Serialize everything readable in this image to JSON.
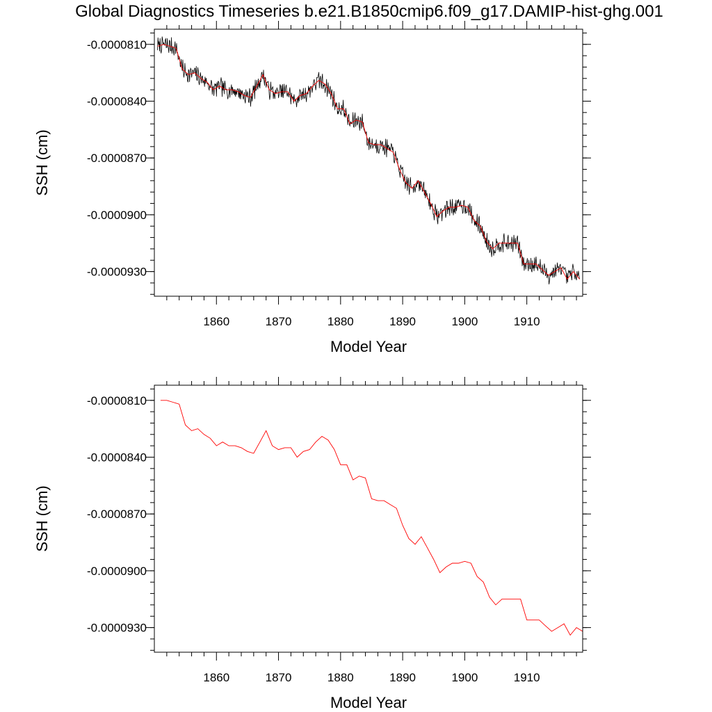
{
  "figure": {
    "title": "Global Diagnostics Timeseries b.e21.B1850cmip6.f09_g17.DAMIP-hist-ghg.001"
  },
  "colors": {
    "monthly": "#000000",
    "annual": "#ff0000",
    "frame": "#000000"
  },
  "chart_data": [
    {
      "type": "line",
      "title": "Global Diagnostics Timeseries b.e21.B1850cmip6.f09_g17.DAMIP-hist-ghg.001",
      "xlabel": "Model Year",
      "ylabel": "SSH (cm)",
      "xlim": [
        1850,
        1919
      ],
      "ylim": [
        -9.43e-05,
        -8.02e-05
      ],
      "xticks": [
        1860,
        1870,
        1880,
        1890,
        1900,
        1910
      ],
      "xtick_labels": [
        "1860",
        "1870",
        "1880",
        "1890",
        "1900",
        "1910"
      ],
      "yticks": [
        -8.1e-05,
        -8.4e-05,
        -8.7e-05,
        -9e-05,
        -9.3e-05
      ],
      "ytick_labels": [
        "-0.0000810",
        "-0.0000840",
        "-0.0000870",
        "-0.0000900",
        "-0.0000930"
      ],
      "grid": false,
      "series": [
        {
          "kind": "monthly",
          "color": "#000000",
          "x": [
            1850.5,
            1851.5,
            1852.5,
            1853.5,
            1854.5,
            1855.5,
            1856.5,
            1857.5,
            1858.5,
            1859.5,
            1860.5,
            1861.5,
            1862.5,
            1863.5,
            1864.5,
            1865.5,
            1866.5,
            1867.5,
            1868.5,
            1869.5,
            1870.5,
            1871.5,
            1872.5,
            1873.5,
            1874.5,
            1875.5,
            1876.5,
            1877.5,
            1878.5,
            1879.5,
            1880.5,
            1881.5,
            1882.5,
            1883.5,
            1884.5,
            1885.5,
            1886.5,
            1887.5,
            1888.5,
            1889.5,
            1890.5,
            1891.5,
            1892.5,
            1893.5,
            1894.5,
            1895.5,
            1896.5,
            1897.5,
            1898.5,
            1899.5,
            1900.5,
            1901.5,
            1902.5,
            1903.5,
            1904.5,
            1905.5,
            1906.5,
            1907.5,
            1908.5,
            1909.5,
            1910.5,
            1911.5,
            1912.5,
            1913.5,
            1914.5,
            1915.5,
            1916.5,
            1917.5,
            1918.5
          ],
          "values": [
            -8.11e-05,
            -8.1e-05,
            -8.11e-05,
            -8.12e-05,
            -8.23e-05,
            -8.26e-05,
            -8.25e-05,
            -8.28e-05,
            -8.3e-05,
            -8.34e-05,
            -8.32e-05,
            -8.34e-05,
            -8.34e-05,
            -8.35e-05,
            -8.37e-05,
            -8.38e-05,
            -8.32e-05,
            -8.26e-05,
            -8.34e-05,
            -8.36e-05,
            -8.35e-05,
            -8.35e-05,
            -8.4e-05,
            -8.37e-05,
            -8.36e-05,
            -8.32e-05,
            -8.29e-05,
            -8.31e-05,
            -8.36e-05,
            -8.44e-05,
            -8.44e-05,
            -8.52e-05,
            -8.5e-05,
            -8.51e-05,
            -8.62e-05,
            -8.63e-05,
            -8.63e-05,
            -8.65e-05,
            -8.67e-05,
            -8.76e-05,
            -8.83e-05,
            -8.86e-05,
            -8.82e-05,
            -8.88e-05,
            -8.94e-05,
            -9.01e-05,
            -8.98e-05,
            -8.96e-05,
            -8.96e-05,
            -8.95e-05,
            -8.96e-05,
            -9.03e-05,
            -9.06e-05,
            -9.14e-05,
            -9.18e-05,
            -9.15e-05,
            -9.15e-05,
            -9.15e-05,
            -9.15e-05,
            -9.26e-05,
            -9.26e-05,
            -9.26e-05,
            -9.29e-05,
            -9.32e-05,
            -9.3e-05,
            -9.28e-05,
            -9.34e-05,
            -9.3e-05,
            -9.34e-05
          ]
        },
        {
          "kind": "annual",
          "color": "#ff0000",
          "x": [
            1850.5,
            1851.5,
            1852.5,
            1853.5,
            1854.5,
            1855.5,
            1856.5,
            1857.5,
            1858.5,
            1859.5,
            1860.5,
            1861.5,
            1862.5,
            1863.5,
            1864.5,
            1865.5,
            1866.5,
            1867.5,
            1868.5,
            1869.5,
            1870.5,
            1871.5,
            1872.5,
            1873.5,
            1874.5,
            1875.5,
            1876.5,
            1877.5,
            1878.5,
            1879.5,
            1880.5,
            1881.5,
            1882.5,
            1883.5,
            1884.5,
            1885.5,
            1886.5,
            1887.5,
            1888.5,
            1889.5,
            1890.5,
            1891.5,
            1892.5,
            1893.5,
            1894.5,
            1895.5,
            1896.5,
            1897.5,
            1898.5,
            1899.5,
            1900.5,
            1901.5,
            1902.5,
            1903.5,
            1904.5,
            1905.5,
            1906.5,
            1907.5,
            1908.5,
            1909.5,
            1910.5,
            1911.5,
            1912.5,
            1913.5,
            1914.5,
            1915.5,
            1916.5,
            1917.5,
            1918.5
          ],
          "values": [
            -8.11e-05,
            -8.1e-05,
            -8.11e-05,
            -8.12e-05,
            -8.23e-05,
            -8.26e-05,
            -8.25e-05,
            -8.28e-05,
            -8.3e-05,
            -8.34e-05,
            -8.32e-05,
            -8.34e-05,
            -8.34e-05,
            -8.35e-05,
            -8.37e-05,
            -8.38e-05,
            -8.32e-05,
            -8.26e-05,
            -8.34e-05,
            -8.36e-05,
            -8.35e-05,
            -8.35e-05,
            -8.4e-05,
            -8.37e-05,
            -8.36e-05,
            -8.32e-05,
            -8.29e-05,
            -8.31e-05,
            -8.36e-05,
            -8.44e-05,
            -8.44e-05,
            -8.52e-05,
            -8.5e-05,
            -8.51e-05,
            -8.62e-05,
            -8.63e-05,
            -8.63e-05,
            -8.65e-05,
            -8.67e-05,
            -8.76e-05,
            -8.83e-05,
            -8.86e-05,
            -8.82e-05,
            -8.88e-05,
            -8.94e-05,
            -9.01e-05,
            -8.98e-05,
            -8.96e-05,
            -8.96e-05,
            -8.95e-05,
            -8.96e-05,
            -9.03e-05,
            -9.06e-05,
            -9.14e-05,
            -9.18e-05,
            -9.15e-05,
            -9.15e-05,
            -9.15e-05,
            -9.15e-05,
            -9.26e-05,
            -9.26e-05,
            -9.26e-05,
            -9.29e-05,
            -9.32e-05,
            -9.3e-05,
            -9.28e-05,
            -9.34e-05,
            -9.3e-05,
            -9.34e-05
          ]
        }
      ]
    },
    {
      "type": "line",
      "title": "",
      "xlabel": "Model Year",
      "ylabel": "SSH (cm)",
      "xlim": [
        1850,
        1919
      ],
      "ylim": [
        -9.43e-05,
        -8.02e-05
      ],
      "xticks": [
        1860,
        1870,
        1880,
        1890,
        1900,
        1910
      ],
      "xtick_labels": [
        "1860",
        "1870",
        "1880",
        "1890",
        "1900",
        "1910"
      ],
      "yticks": [
        -8.1e-05,
        -8.4e-05,
        -8.7e-05,
        -9e-05,
        -9.3e-05
      ],
      "ytick_labels": [
        "-0.0000810",
        "-0.0000840",
        "-0.0000870",
        "-0.0000900",
        "-0.0000930"
      ],
      "grid": false,
      "series": [
        {
          "kind": "annual",
          "color": "#ff0000",
          "x": [
            1851,
            1852,
            1853,
            1854,
            1855,
            1856,
            1857,
            1858,
            1859,
            1860,
            1861,
            1862,
            1863,
            1864,
            1865,
            1866,
            1867,
            1868,
            1869,
            1870,
            1871,
            1872,
            1873,
            1874,
            1875,
            1876,
            1877,
            1878,
            1879,
            1880,
            1881,
            1882,
            1883,
            1884,
            1885,
            1886,
            1887,
            1888,
            1889,
            1890,
            1891,
            1892,
            1893,
            1894,
            1895,
            1896,
            1897,
            1898,
            1899,
            1900,
            1901,
            1902,
            1903,
            1904,
            1905,
            1906,
            1907,
            1908,
            1909,
            1910,
            1911,
            1912,
            1913,
            1914,
            1915,
            1916,
            1917,
            1918,
            1919
          ],
          "values": [
            -8.1e-05,
            -8.1e-05,
            -8.11e-05,
            -8.12e-05,
            -8.23e-05,
            -8.26e-05,
            -8.25e-05,
            -8.28e-05,
            -8.3e-05,
            -8.34e-05,
            -8.32e-05,
            -8.34e-05,
            -8.34e-05,
            -8.35e-05,
            -8.37e-05,
            -8.38e-05,
            -8.32e-05,
            -8.26e-05,
            -8.34e-05,
            -8.36e-05,
            -8.35e-05,
            -8.35e-05,
            -8.4e-05,
            -8.37e-05,
            -8.36e-05,
            -8.32e-05,
            -8.29e-05,
            -8.31e-05,
            -8.36e-05,
            -8.44e-05,
            -8.44e-05,
            -8.52e-05,
            -8.5e-05,
            -8.51e-05,
            -8.62e-05,
            -8.63e-05,
            -8.63e-05,
            -8.65e-05,
            -8.67e-05,
            -8.76e-05,
            -8.83e-05,
            -8.86e-05,
            -8.82e-05,
            -8.88e-05,
            -8.94e-05,
            -9.01e-05,
            -8.98e-05,
            -8.96e-05,
            -8.96e-05,
            -8.95e-05,
            -8.96e-05,
            -9.03e-05,
            -9.06e-05,
            -9.14e-05,
            -9.18e-05,
            -9.15e-05,
            -9.15e-05,
            -9.15e-05,
            -9.15e-05,
            -9.26e-05,
            -9.26e-05,
            -9.26e-05,
            -9.29e-05,
            -9.32e-05,
            -9.3e-05,
            -9.28e-05,
            -9.34e-05,
            -9.3e-05,
            -9.32e-05
          ]
        }
      ]
    }
  ]
}
